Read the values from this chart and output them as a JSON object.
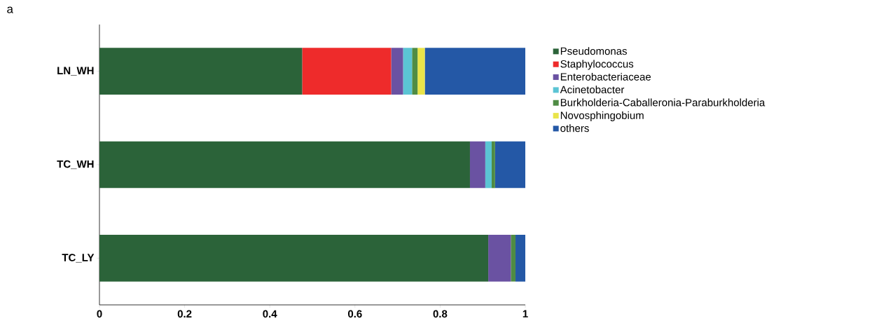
{
  "chart_data": {
    "type": "bar",
    "orientation": "horizontal",
    "stacked": true,
    "annotations": [
      "a"
    ],
    "categories": [
      "LN_WH",
      "TC_WH",
      "TC_LY"
    ],
    "series": [
      {
        "name": "Pseudomonas",
        "color": "#2b6339",
        "values": [
          0.476,
          0.87,
          0.913
        ]
      },
      {
        "name": "Staphylococcus",
        "color": "#ee2b2b",
        "values": [
          0.209,
          0,
          0
        ]
      },
      {
        "name": "Enterobacteriaceae",
        "color": "#6a52a2",
        "values": [
          0.028,
          0.036,
          0.053
        ]
      },
      {
        "name": "Acinetobacter",
        "color": "#5bc4d4",
        "values": [
          0.021,
          0.015,
          0
        ]
      },
      {
        "name": "Burkholderia-Caballeronia-Paraburkholderia",
        "color": "#4f8c44",
        "values": [
          0.013,
          0.008,
          0.011
        ]
      },
      {
        "name": "Novosphingobium",
        "color": "#e9e44a",
        "values": [
          0.017,
          0,
          0
        ]
      },
      {
        "name": "others",
        "color": "#2458a6",
        "values": [
          0.236,
          0.071,
          0.023
        ]
      }
    ],
    "xlim": [
      0,
      1
    ],
    "xticks": [
      0,
      0.2,
      0.4,
      0.6,
      0.8,
      1
    ],
    "legend": "right"
  }
}
